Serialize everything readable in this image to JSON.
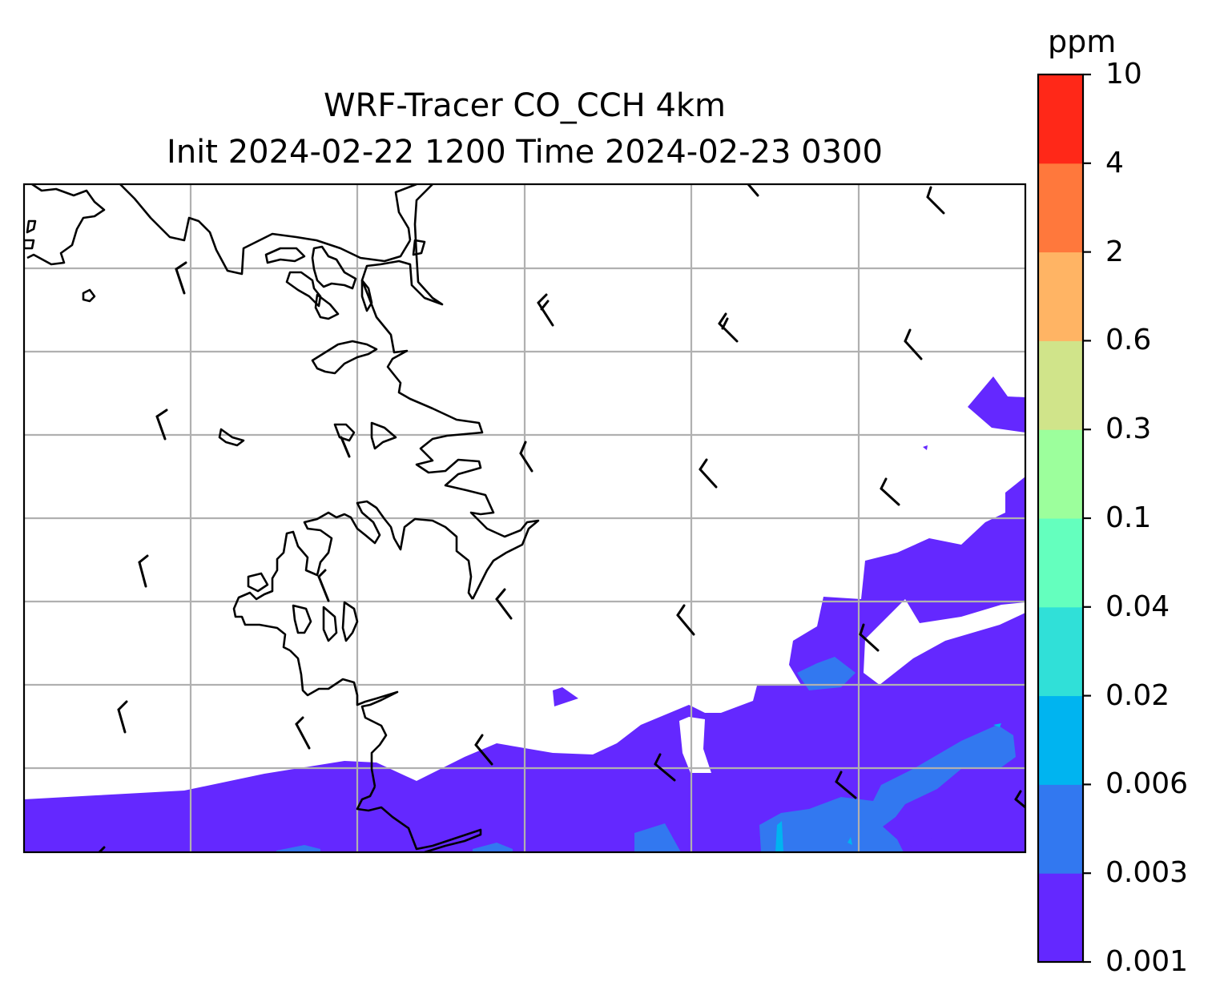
{
  "title": {
    "line1": "WRF-Tracer CO_CCH 4km",
    "line2": "Init 2024-02-22 1200 Time 2024-02-23 0300"
  },
  "colorbar": {
    "unit": "ppm",
    "levels": [
      "0.001",
      "0.003",
      "0.006",
      "0.02",
      "0.04",
      "0.1",
      "0.3",
      "0.6",
      "2",
      "4",
      "10"
    ],
    "colors": [
      "#6428ff",
      "#3278f0",
      "#00b4f0",
      "#30e0d8",
      "#64ffbe",
      "#9cff9c",
      "#d0e48a",
      "#ffb464",
      "#ff783c",
      "#ff2818"
    ]
  },
  "map": {
    "gridlines": true,
    "grid_color": "#b0b0b0",
    "coastline_color": "#000000",
    "wind_barbs": true
  }
}
